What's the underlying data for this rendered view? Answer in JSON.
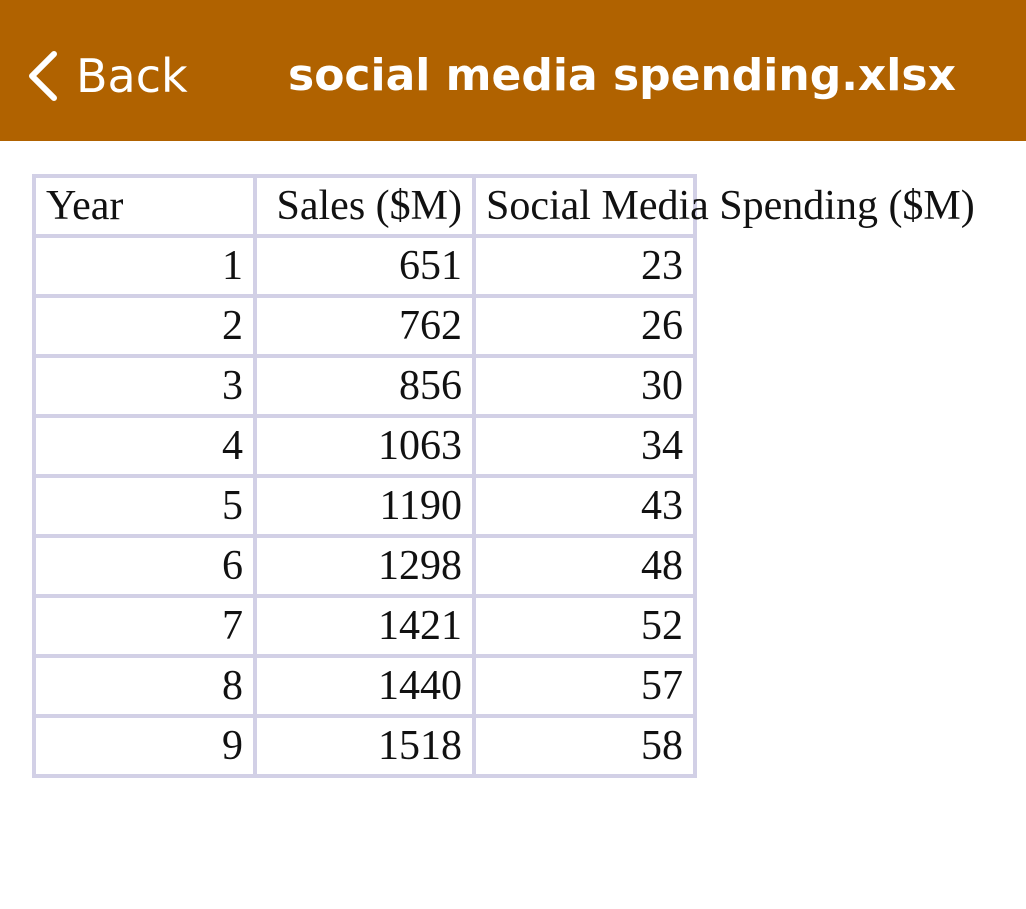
{
  "header": {
    "back_label": "Back",
    "title": "social media spending.xlsx",
    "background_color": "#b06200",
    "back_icon": "chevron-left-icon"
  },
  "sheet": {
    "columns": [
      "Year",
      "Sales ($M)",
      "Social Media Spending ($M)"
    ],
    "rows": [
      [
        "1",
        "651",
        "23"
      ],
      [
        "2",
        "762",
        "26"
      ],
      [
        "3",
        "856",
        "30"
      ],
      [
        "4",
        "1063",
        "34"
      ],
      [
        "5",
        "1190",
        "43"
      ],
      [
        "6",
        "1298",
        "48"
      ],
      [
        "7",
        "1421",
        "52"
      ],
      [
        "8",
        "1440",
        "57"
      ],
      [
        "9",
        "1518",
        "58"
      ]
    ],
    "grid_color": "#d2d0e6"
  }
}
